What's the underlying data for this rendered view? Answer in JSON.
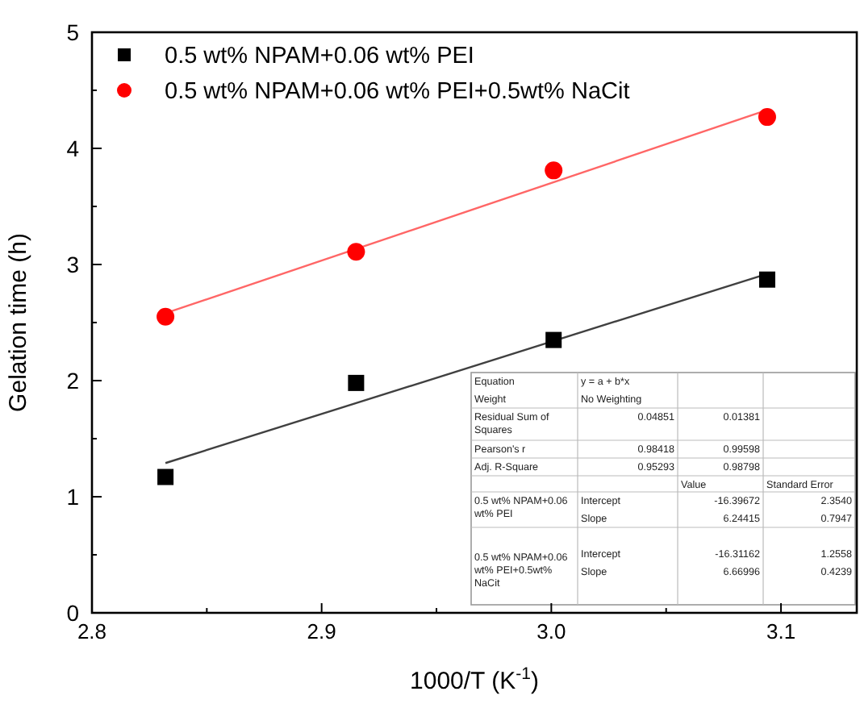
{
  "chart_data": {
    "type": "scatter",
    "xlabel": "1000/T (K$^{-1}$)",
    "ylabel": "Gelation time (h)",
    "xlim": [
      2.8,
      3.133
    ],
    "ylim": [
      0,
      5
    ],
    "xticks": [
      2.8,
      {
        "value": 2.85,
        "label": null
      },
      2.9,
      {
        "value": 2.95,
        "label": null
      },
      {
        "value": 3.0,
        "label": "3.0"
      },
      {
        "value": 3.05,
        "label": null
      },
      3.1
    ],
    "yticks": [
      0,
      {
        "value": 0.5,
        "label": null
      },
      1,
      {
        "value": 1.5,
        "label": null
      },
      2,
      {
        "value": 2.5,
        "label": null
      },
      3,
      {
        "value": 3.5,
        "label": null
      },
      4,
      {
        "value": 4.5,
        "label": null
      },
      5
    ],
    "grid": false,
    "legend": "top left",
    "series": [
      {
        "name": "0.5 wt% NPAM+0.06 wt% PEI",
        "marker": "square",
        "color": "#000000",
        "x": [
          2.832,
          2.915,
          3.001,
          3.094
        ],
        "values": [
          1.17,
          1.98,
          2.35,
          2.87
        ]
      },
      {
        "name": "0.5 wt% NPAM+0.06 wt% PEI+0.5wt% NaCit",
        "marker": "circle",
        "color": "#ff0000",
        "x": [
          2.832,
          2.915,
          3.001,
          3.094
        ],
        "values": [
          2.55,
          3.11,
          3.81,
          4.27
        ]
      },
      {
        "type": "line",
        "color": "#404040",
        "x": [
          2.832,
          3.094
        ],
        "values": [
          1.29,
          2.92
        ]
      },
      {
        "type": "line",
        "color": "#ff6666",
        "x": [
          2.832,
          3.094
        ],
        "values": [
          2.58,
          4.33
        ]
      }
    ],
    "annotations": [
      "Equation",
      "y = a + b*x",
      "Weight",
      "No Weighting",
      "Residual Sum of Squares",
      "0.04851",
      "0.01381",
      "Pearson's r",
      "0.98418",
      "0.99598",
      "Adj. R-Square",
      "0.95293",
      "0.98798",
      "Value",
      "Standard Error",
      "0.5 wt% NPAM+0.06 wt% PEI",
      "Intercept",
      "-16.39672",
      "2.3540",
      "Slope",
      "6.24415",
      "0.7947",
      "Intercept",
      "-16.31162",
      "1.2558",
      "0.5 wt% NPAM+0.06 wt% PEI+0.5wt% NaCit",
      "Slope",
      "6.66996",
      "0.4239"
    ]
  }
}
